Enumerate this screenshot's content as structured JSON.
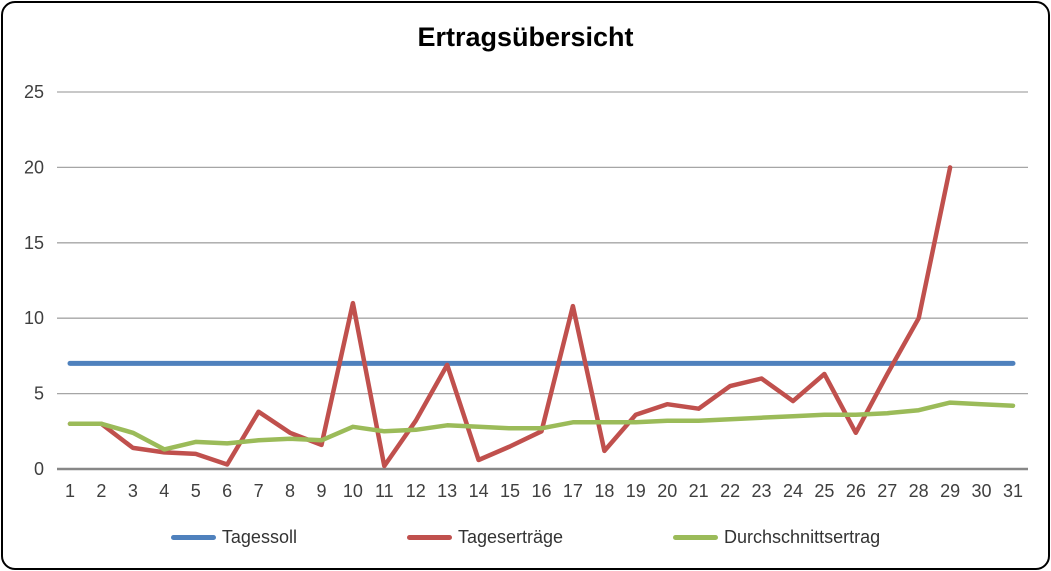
{
  "chart_data": {
    "type": "line",
    "title": "Ertragsübersicht",
    "categories": [
      1,
      2,
      3,
      4,
      5,
      6,
      7,
      8,
      9,
      10,
      11,
      12,
      13,
      14,
      15,
      16,
      17,
      18,
      19,
      20,
      21,
      22,
      23,
      24,
      25,
      26,
      27,
      28,
      29,
      30,
      31
    ],
    "series": [
      {
        "name": "Tagessoll",
        "color": "#4F81BD",
        "width": 5,
        "values": [
          7,
          7,
          7,
          7,
          7,
          7,
          7,
          7,
          7,
          7,
          7,
          7,
          7,
          7,
          7,
          7,
          7,
          7,
          7,
          7,
          7,
          7,
          7,
          7,
          7,
          7,
          7,
          7,
          7,
          7,
          7
        ]
      },
      {
        "name": "Tageserträge",
        "color": "#C0504D",
        "width": 4.5,
        "values": [
          3,
          3,
          1.4,
          1.1,
          1,
          0.3,
          3.8,
          2.4,
          1.6,
          11,
          0.2,
          3.2,
          6.9,
          0.6,
          1.5,
          2.5,
          10.8,
          1.2,
          3.6,
          4.3,
          4,
          5.5,
          6,
          4.5,
          6.3,
          2.4,
          6.3,
          10,
          20,
          null,
          null
        ]
      },
      {
        "name": "Durchschnittsertrag",
        "color": "#9BBB59",
        "width": 4.5,
        "values": [
          3,
          3,
          2.4,
          1.3,
          1.8,
          1.7,
          1.9,
          2,
          1.9,
          2.8,
          2.5,
          2.6,
          2.9,
          2.8,
          2.7,
          2.7,
          3.1,
          3.1,
          3.1,
          3.2,
          3.2,
          3.3,
          3.4,
          3.5,
          3.6,
          3.6,
          3.7,
          3.9,
          4.4,
          4.3,
          4.2
        ]
      }
    ],
    "xlabel": "",
    "ylabel": "",
    "ylim": [
      0,
      25
    ],
    "yticks": [
      0,
      5,
      10,
      15,
      20,
      25
    ],
    "grid": true,
    "legend_position": "bottom"
  },
  "colors": {
    "background": "#FFFFFF",
    "border": "#000000",
    "gridline": "#A6A6A6",
    "axis_line": "#878787",
    "tick_text": "#3F3F3F",
    "title_text": "#000000"
  }
}
